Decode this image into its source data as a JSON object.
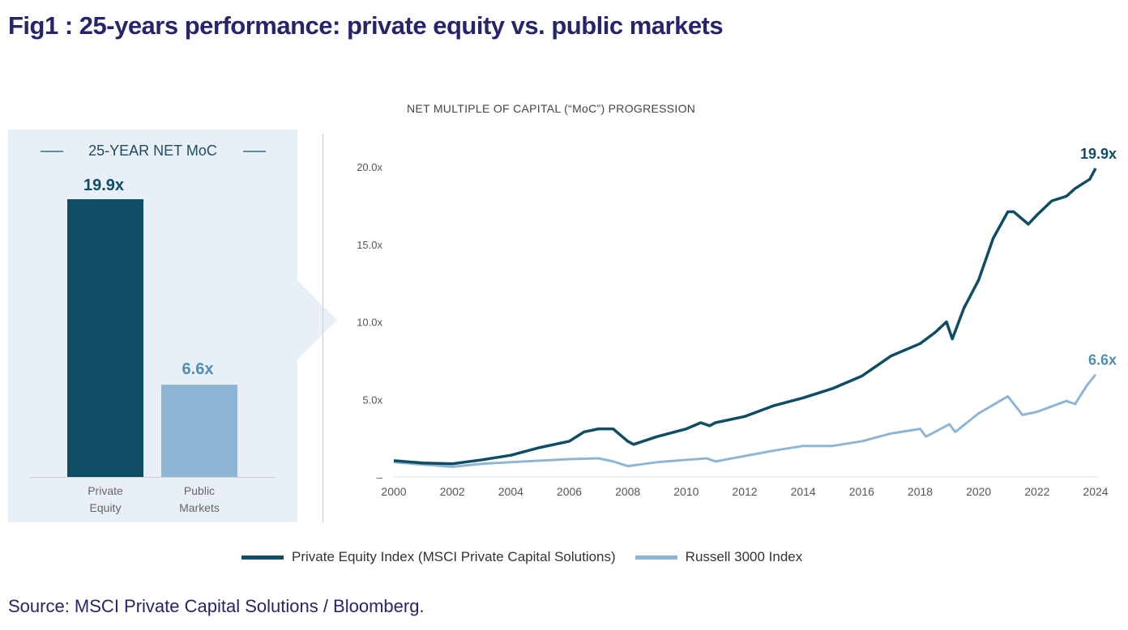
{
  "title": "Fig1 : 25-years performance: private equity vs. public markets",
  "source": "Source: MSCI Private Capital Solutions / Bloomberg.",
  "colors": {
    "pe": "#0e4d64",
    "public": "#8eb6d4",
    "title": "#26256b"
  },
  "chart_data": [
    {
      "type": "bar",
      "title": "25-YEAR NET MoC",
      "categories": [
        "Private Equity",
        "Public Markets"
      ],
      "category_lines": [
        [
          "Private",
          "Equity"
        ],
        [
          "Public",
          "Markets"
        ]
      ],
      "values": [
        19.9,
        6.6
      ],
      "labels": [
        "19.9x",
        "6.6x"
      ]
    },
    {
      "type": "line",
      "title": "NET MULTIPLE OF CAPITAL (“MoC”) PROGRESSION",
      "xlabel": "",
      "ylabel": "",
      "xlim": [
        2000,
        2024
      ],
      "ylim": [
        0,
        20
      ],
      "xticks": [
        "2000",
        "2002",
        "2004",
        "2006",
        "2008",
        "2010",
        "2012",
        "2014",
        "2016",
        "2018",
        "2020",
        "2022",
        "2024"
      ],
      "yticks": [
        {
          "v": 0,
          "l": "–"
        },
        {
          "v": 5,
          "l": "5.0x"
        },
        {
          "v": 10,
          "l": "10.0x"
        },
        {
          "v": 15,
          "l": "15.0x"
        },
        {
          "v": 20,
          "l": "20.0x"
        }
      ],
      "legend_position": "bottom",
      "series": [
        {
          "name": "Private Equity Index (MSCI Private Capital Solutions)",
          "end_label": "19.9x",
          "x": [
            2000,
            2001,
            2002,
            2003,
            2004,
            2005,
            2006,
            2006.5,
            2007,
            2007.5,
            2008,
            2008.2,
            2009,
            2010,
            2010.5,
            2010.8,
            2011,
            2012,
            2013,
            2014,
            2015,
            2016,
            2017,
            2018,
            2018.5,
            2018.9,
            2019.1,
            2019.5,
            2020,
            2020.5,
            2021,
            2021.2,
            2021.7,
            2022,
            2022.5,
            2023,
            2023.3,
            2023.8,
            2024
          ],
          "y": [
            1.05,
            0.9,
            0.85,
            1.1,
            1.4,
            1.9,
            2.3,
            2.9,
            3.1,
            3.1,
            2.3,
            2.1,
            2.6,
            3.1,
            3.5,
            3.3,
            3.5,
            3.9,
            4.6,
            5.1,
            5.7,
            6.5,
            7.8,
            8.6,
            9.3,
            10.0,
            8.9,
            10.9,
            12.7,
            15.4,
            17.1,
            17.1,
            16.3,
            16.9,
            17.8,
            18.1,
            18.6,
            19.2,
            19.9
          ]
        },
        {
          "name": "Russell 3000 Index",
          "end_label": "6.6x",
          "x": [
            2000,
            2001,
            2002,
            2003,
            2004,
            2005,
            2006,
            2007,
            2007.5,
            2008,
            2009,
            2010,
            2010.7,
            2011,
            2012,
            2013,
            2014,
            2015,
            2016,
            2017,
            2018,
            2018.2,
            2019,
            2019.2,
            2020,
            2021,
            2021.5,
            2022,
            2023,
            2023.3,
            2023.7,
            2024
          ],
          "y": [
            0.95,
            0.8,
            0.65,
            0.85,
            0.95,
            1.05,
            1.15,
            1.2,
            1.0,
            0.7,
            0.95,
            1.1,
            1.2,
            1.0,
            1.35,
            1.7,
            2.0,
            2.0,
            2.3,
            2.8,
            3.1,
            2.6,
            3.4,
            2.9,
            4.1,
            5.2,
            4.0,
            4.2,
            4.9,
            4.7,
            5.9,
            6.6
          ]
        }
      ]
    }
  ]
}
